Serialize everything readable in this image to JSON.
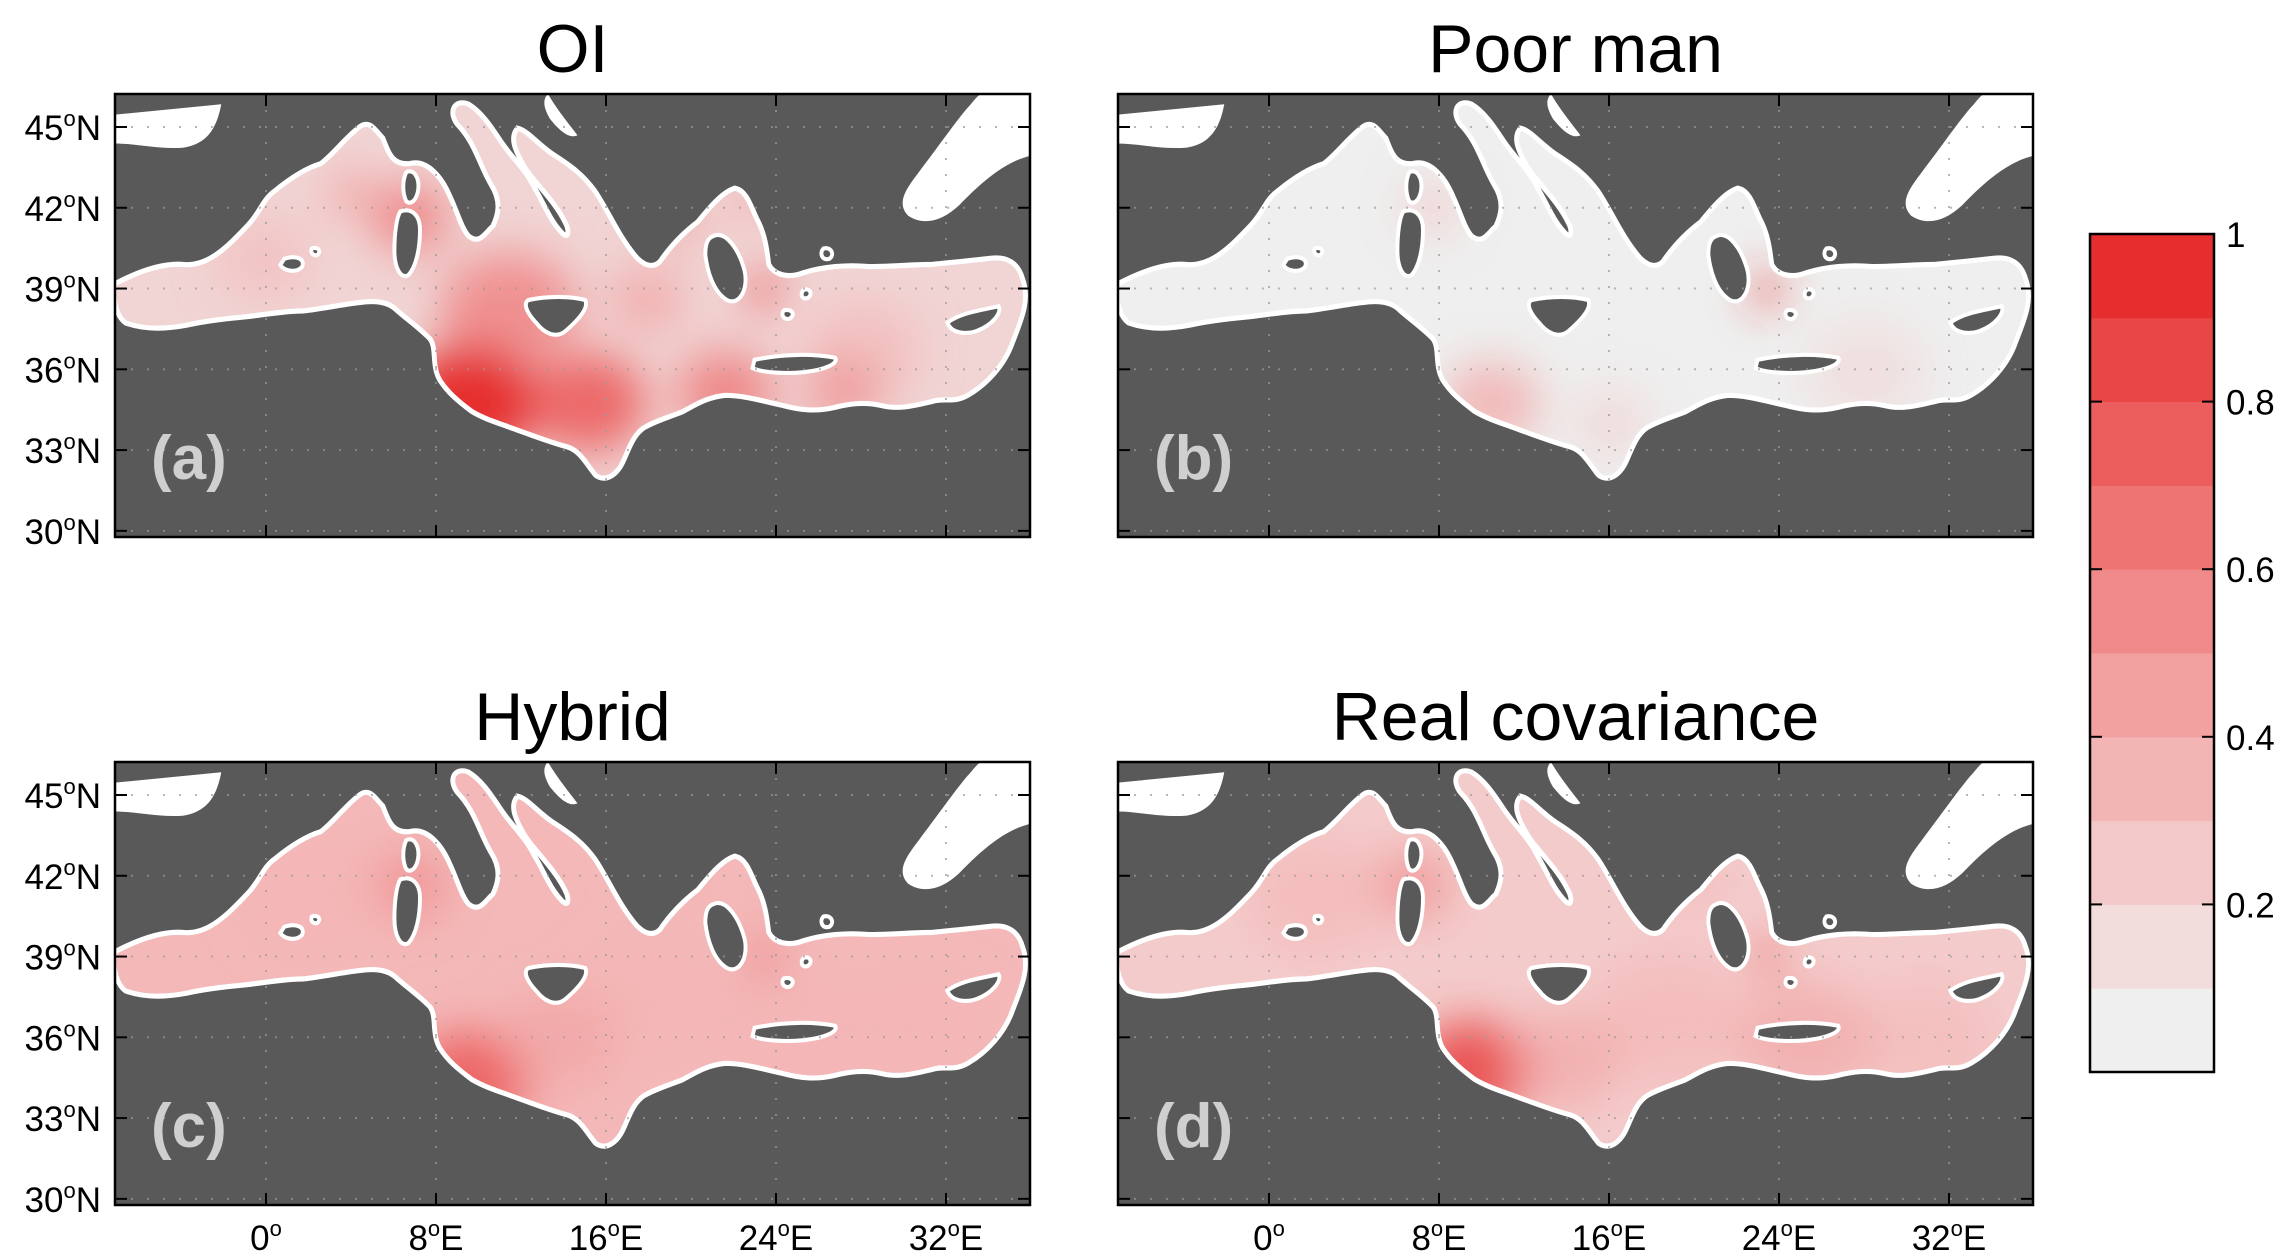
{
  "colors": {
    "land": "#595959",
    "sea_base": "#efefef",
    "frame": "#000000",
    "label_gray": "#cfcfcf",
    "colorbar_levels": [
      "#efefef",
      "#f3dcdc",
      "#f3c8c8",
      "#f3b4b4",
      "#f2a0a0",
      "#f08a8a",
      "#ee7474",
      "#ec5d5d",
      "#e94646",
      "#e62e2e"
    ]
  },
  "axes": {
    "lat_ticks": [
      {
        "deg": "45",
        "suffix": "N"
      },
      {
        "deg": "42",
        "suffix": "N"
      },
      {
        "deg": "39",
        "suffix": "N"
      },
      {
        "deg": "36",
        "suffix": "N"
      },
      {
        "deg": "33",
        "suffix": "N"
      },
      {
        "deg": "30",
        "suffix": "N"
      }
    ],
    "lon_ticks": [
      {
        "deg": "0",
        "suffix": ""
      },
      {
        "deg": "8",
        "suffix": "E"
      },
      {
        "deg": "16",
        "suffix": "E"
      },
      {
        "deg": "24",
        "suffix": "E"
      },
      {
        "deg": "32",
        "suffix": "E"
      }
    ]
  },
  "panels": [
    {
      "title": "OI",
      "label": "(a)"
    },
    {
      "title": "Poor man",
      "label": "(b)"
    },
    {
      "title": "Hybrid",
      "label": "(c)"
    },
    {
      "title": "Real covariance",
      "label": "(d)"
    }
  ],
  "colorbar": {
    "ticks": [
      "1",
      "0.8",
      "0.6",
      "0.4",
      "0.2"
    ],
    "tick_values": [
      1,
      0.8,
      0.6,
      0.4,
      0.2
    ],
    "range": [
      0,
      1
    ]
  }
}
